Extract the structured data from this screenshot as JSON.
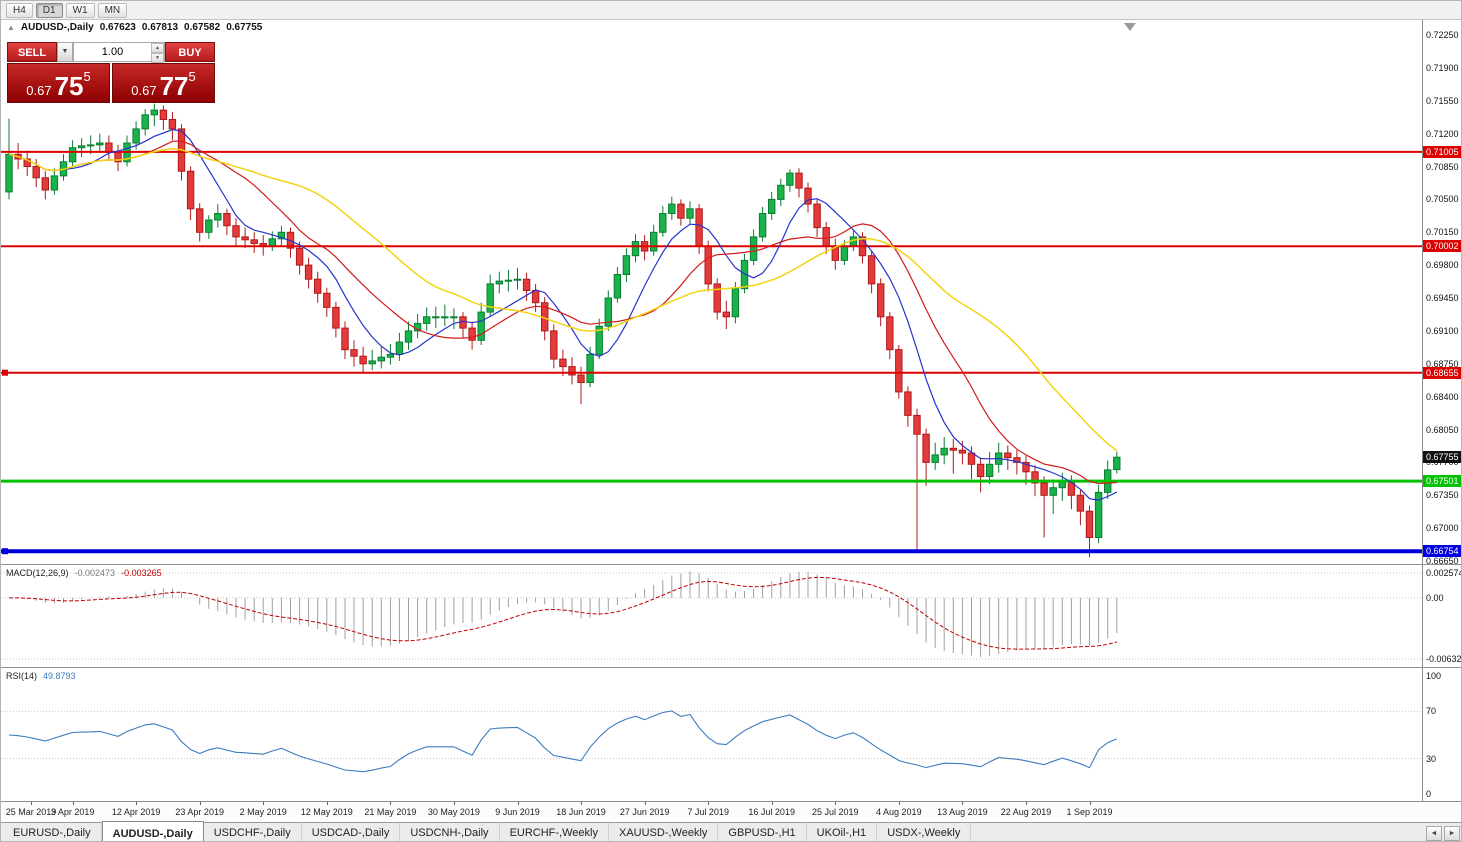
{
  "toolbar": {
    "timeframes": [
      "H4",
      "D1",
      "W1",
      "MN"
    ],
    "active_timeframe": "D1"
  },
  "chart_header": {
    "collapse_icon": "▲",
    "symbol": "AUDUSD-,Daily",
    "open": "0.67623",
    "high": "0.67813",
    "low": "0.67582",
    "close": "0.67755"
  },
  "trade_panel": {
    "sell_label": "SELL",
    "buy_label": "BUY",
    "volume": "1.00",
    "sell_price": {
      "prefix": "0.67",
      "big": "75",
      "pip": "5"
    },
    "buy_price": {
      "prefix": "0.67",
      "big": "77",
      "pip": "5"
    }
  },
  "icons": {
    "dropdown_icon": "▼",
    "spinner_up_icon": "▲",
    "spinner_down_icon": "▼",
    "tab_scroll_left_icon": "◄",
    "tab_scroll_right_icon": "►"
  },
  "price_axis_labels": [
    "0.72250",
    "0.71900",
    "0.71550",
    "0.71200",
    "0.70850",
    "0.70500",
    "0.70150",
    "0.69800",
    "0.69450",
    "0.69100",
    "0.68750",
    "0.68400",
    "0.68050",
    "0.67700",
    "0.67350",
    "0.67000",
    "0.66650"
  ],
  "hlines": [
    {
      "price": 0.71005,
      "label": "0.71005",
      "color": "#dd0000",
      "thickness": 2,
      "left_marker": false
    },
    {
      "price": 0.70002,
      "label": "0.70002",
      "color": "#dd0000",
      "thickness": 2,
      "left_marker": false
    },
    {
      "price": 0.68655,
      "label": "0.68655",
      "color": "#dd0000",
      "thickness": 2,
      "left_marker": true
    },
    {
      "price": 0.67501,
      "label": "0.67501",
      "color": "#00c200",
      "thickness": 3,
      "left_marker": false
    },
    {
      "price": 0.66754,
      "label": "0.66754",
      "color": "#0000e0",
      "thickness": 4,
      "left_marker": true
    }
  ],
  "current_price_tag": {
    "label": "0.67755",
    "price": 0.67755,
    "color": "#111111"
  },
  "chart_data": {
    "type": "candlestick",
    "title": "AUDUSD-,Daily",
    "ylim": [
      0.6665,
      0.7225
    ],
    "label_step": 7,
    "x_labels": [
      "25 Mar 2019",
      "3 Apr 2019",
      "12 Apr 2019",
      "23 Apr 2019",
      "2 May 2019",
      "12 May 2019",
      "21 May 2019",
      "30 May 2019",
      "9 Jun 2019",
      "18 Jun 2019",
      "27 Jun 2019",
      "7 Jul 2019",
      "16 Jul 2019",
      "25 Jul 2019",
      "4 Aug 2019",
      "13 Aug 2019",
      "22 Aug 2019",
      "1 Sep 2019"
    ],
    "up_color": "#19b24b",
    "up_border": "#0b7d33",
    "down_color": "#e33b3b",
    "down_border": "#b01919",
    "moving_averages": [
      {
        "name": "MA-fast",
        "period": 7,
        "color": "#2633cc",
        "width": 1.2
      },
      {
        "name": "MA-mid",
        "period": 14,
        "color": "#d21b1b",
        "width": 1.2
      },
      {
        "name": "MA-slow",
        "period": 28,
        "color": "#f2d410",
        "width": 1.5
      }
    ],
    "candles": [
      [
        0.7058,
        0.7136,
        0.705,
        0.7098
      ],
      [
        0.7098,
        0.711,
        0.7082,
        0.7093
      ],
      [
        0.7093,
        0.7102,
        0.7075,
        0.7085
      ],
      [
        0.7085,
        0.7093,
        0.7063,
        0.7073
      ],
      [
        0.7073,
        0.708,
        0.705,
        0.706
      ],
      [
        0.706,
        0.7083,
        0.7055,
        0.7075
      ],
      [
        0.7075,
        0.7098,
        0.707,
        0.709
      ],
      [
        0.709,
        0.7113,
        0.7085,
        0.7105
      ],
      [
        0.7105,
        0.7115,
        0.7095,
        0.7107
      ],
      [
        0.7107,
        0.7118,
        0.7098,
        0.7108
      ],
      [
        0.7108,
        0.712,
        0.71,
        0.711
      ],
      [
        0.711,
        0.7118,
        0.7092,
        0.71
      ],
      [
        0.71,
        0.7108,
        0.708,
        0.709
      ],
      [
        0.709,
        0.7118,
        0.7085,
        0.711
      ],
      [
        0.711,
        0.7133,
        0.7103,
        0.7125
      ],
      [
        0.7125,
        0.7146,
        0.7118,
        0.714
      ],
      [
        0.714,
        0.7152,
        0.7128,
        0.7145
      ],
      [
        0.7145,
        0.715,
        0.7124,
        0.7135
      ],
      [
        0.7135,
        0.7143,
        0.7113,
        0.7125
      ],
      [
        0.7125,
        0.713,
        0.707,
        0.708
      ],
      [
        0.708,
        0.7085,
        0.7028,
        0.704
      ],
      [
        0.704,
        0.7046,
        0.7005,
        0.7015
      ],
      [
        0.7015,
        0.7033,
        0.7008,
        0.7028
      ],
      [
        0.7028,
        0.7045,
        0.702,
        0.7035
      ],
      [
        0.7035,
        0.704,
        0.7012,
        0.7022
      ],
      [
        0.7022,
        0.703,
        0.7,
        0.701
      ],
      [
        0.701,
        0.702,
        0.6998,
        0.7007
      ],
      [
        0.7007,
        0.7015,
        0.6993,
        0.7003
      ],
      [
        0.7003,
        0.7012,
        0.699,
        0.7
      ],
      [
        0.7,
        0.7016,
        0.6995,
        0.7008
      ],
      [
        0.7008,
        0.7022,
        0.7,
        0.7015
      ],
      [
        0.7015,
        0.702,
        0.6988,
        0.6998
      ],
      [
        0.6998,
        0.7005,
        0.697,
        0.698
      ],
      [
        0.698,
        0.6988,
        0.6955,
        0.6965
      ],
      [
        0.6965,
        0.6973,
        0.694,
        0.695
      ],
      [
        0.695,
        0.6956,
        0.6925,
        0.6935
      ],
      [
        0.6935,
        0.6941,
        0.6903,
        0.6913
      ],
      [
        0.6913,
        0.692,
        0.688,
        0.689
      ],
      [
        0.689,
        0.69,
        0.6872,
        0.6883
      ],
      [
        0.6883,
        0.6893,
        0.68645,
        0.6875
      ],
      [
        0.6875,
        0.689,
        0.6868,
        0.6878
      ],
      [
        0.6878,
        0.6893,
        0.687,
        0.6882
      ],
      [
        0.6882,
        0.6896,
        0.6874,
        0.6885
      ],
      [
        0.6885,
        0.6908,
        0.6878,
        0.6898
      ],
      [
        0.6898,
        0.692,
        0.689,
        0.691
      ],
      [
        0.691,
        0.6928,
        0.6902,
        0.6918
      ],
      [
        0.6918,
        0.6935,
        0.691,
        0.6925
      ],
      [
        0.6925,
        0.6936,
        0.6913,
        0.6925
      ],
      [
        0.6925,
        0.6938,
        0.6915,
        0.6925
      ],
      [
        0.6925,
        0.6934,
        0.6912,
        0.6925
      ],
      [
        0.6925,
        0.693,
        0.6902,
        0.6913
      ],
      [
        0.6913,
        0.692,
        0.689,
        0.69
      ],
      [
        0.69,
        0.694,
        0.6895,
        0.693
      ],
      [
        0.693,
        0.697,
        0.6925,
        0.696
      ],
      [
        0.696,
        0.6973,
        0.695,
        0.6963
      ],
      [
        0.6963,
        0.6975,
        0.6952,
        0.6964
      ],
      [
        0.6964,
        0.6977,
        0.6954,
        0.6965
      ],
      [
        0.6965,
        0.6972,
        0.6942,
        0.6953
      ],
      [
        0.6953,
        0.696,
        0.693,
        0.694
      ],
      [
        0.694,
        0.6946,
        0.69,
        0.691
      ],
      [
        0.691,
        0.6917,
        0.687,
        0.688
      ],
      [
        0.688,
        0.689,
        0.6862,
        0.6872
      ],
      [
        0.6872,
        0.6882,
        0.6853,
        0.6863
      ],
      [
        0.6863,
        0.6872,
        0.6832,
        0.6855
      ],
      [
        0.6855,
        0.6893,
        0.685,
        0.6885
      ],
      [
        0.6885,
        0.6923,
        0.688,
        0.6915
      ],
      [
        0.6915,
        0.6953,
        0.691,
        0.6945
      ],
      [
        0.6945,
        0.6978,
        0.694,
        0.697
      ],
      [
        0.697,
        0.6998,
        0.6962,
        0.699
      ],
      [
        0.699,
        0.7013,
        0.6983,
        0.7005
      ],
      [
        0.7005,
        0.7012,
        0.6985,
        0.6995
      ],
      [
        0.6995,
        0.7023,
        0.699,
        0.7015
      ],
      [
        0.7015,
        0.7043,
        0.701,
        0.7035
      ],
      [
        0.7035,
        0.7053,
        0.7028,
        0.7045
      ],
      [
        0.7045,
        0.705,
        0.7022,
        0.703
      ],
      [
        0.703,
        0.7048,
        0.7023,
        0.704
      ],
      [
        0.704,
        0.7045,
        0.6992,
        0.7
      ],
      [
        0.7,
        0.7006,
        0.6952,
        0.696
      ],
      [
        0.696,
        0.6966,
        0.6922,
        0.693
      ],
      [
        0.693,
        0.6942,
        0.6912,
        0.6925
      ],
      [
        0.6925,
        0.6962,
        0.6918,
        0.6955
      ],
      [
        0.6955,
        0.6992,
        0.695,
        0.6985
      ],
      [
        0.6985,
        0.7018,
        0.698,
        0.701
      ],
      [
        0.701,
        0.7042,
        0.7005,
        0.7035
      ],
      [
        0.7035,
        0.7058,
        0.7028,
        0.705
      ],
      [
        0.705,
        0.7072,
        0.7043,
        0.7065
      ],
      [
        0.7065,
        0.7082,
        0.7058,
        0.7078
      ],
      [
        0.7078,
        0.7083,
        0.7052,
        0.7062
      ],
      [
        0.7062,
        0.7068,
        0.7036,
        0.7045
      ],
      [
        0.7045,
        0.705,
        0.701,
        0.702
      ],
      [
        0.702,
        0.7026,
        0.6992,
        0.7
      ],
      [
        0.7,
        0.7008,
        0.6975,
        0.6985
      ],
      [
        0.6985,
        0.7007,
        0.698,
        0.7
      ],
      [
        0.7,
        0.7018,
        0.6995,
        0.701
      ],
      [
        0.701,
        0.7015,
        0.6982,
        0.699
      ],
      [
        0.699,
        0.6995,
        0.695,
        0.696
      ],
      [
        0.696,
        0.6966,
        0.6915,
        0.6925
      ],
      [
        0.6925,
        0.693,
        0.688,
        0.689
      ],
      [
        0.689,
        0.6895,
        0.6838,
        0.6845
      ],
      [
        0.6845,
        0.6851,
        0.6808,
        0.682
      ],
      [
        0.682,
        0.6827,
        0.66757,
        0.68
      ],
      [
        0.68,
        0.6806,
        0.6745,
        0.677
      ],
      [
        0.677,
        0.6791,
        0.6762,
        0.6778
      ],
      [
        0.6778,
        0.6797,
        0.6768,
        0.6785
      ],
      [
        0.6785,
        0.6795,
        0.6758,
        0.6783
      ],
      [
        0.6783,
        0.6793,
        0.6768,
        0.678
      ],
      [
        0.678,
        0.6787,
        0.6752,
        0.6768
      ],
      [
        0.6768,
        0.6775,
        0.6738,
        0.6755
      ],
      [
        0.6755,
        0.6781,
        0.6747,
        0.6768
      ],
      [
        0.6768,
        0.6791,
        0.6759,
        0.678
      ],
      [
        0.678,
        0.6788,
        0.6762,
        0.6775
      ],
      [
        0.6775,
        0.6783,
        0.6757,
        0.677
      ],
      [
        0.677,
        0.6777,
        0.6746,
        0.676
      ],
      [
        0.676,
        0.6767,
        0.6734,
        0.6748
      ],
      [
        0.6748,
        0.6755,
        0.669,
        0.6735
      ],
      [
        0.6735,
        0.6752,
        0.6715,
        0.6743
      ],
      [
        0.6743,
        0.6759,
        0.6729,
        0.675
      ],
      [
        0.675,
        0.6756,
        0.672,
        0.6735
      ],
      [
        0.6735,
        0.6741,
        0.6703,
        0.6718
      ],
      [
        0.6718,
        0.6724,
        0.66689,
        0.669
      ],
      [
        0.669,
        0.6746,
        0.6684,
        0.6738
      ],
      [
        0.6738,
        0.6772,
        0.6731,
        0.6762
      ],
      [
        0.67623,
        0.67813,
        0.67582,
        0.67755
      ]
    ]
  },
  "macd_panel": {
    "title": "MACD(12,26,9)",
    "main_value": "-0.002473",
    "signal_value": "-0.003265",
    "fast": 12,
    "slow": 26,
    "signal": 9,
    "axis_labels": [
      "0.002574",
      "0.00",
      "-0.006326"
    ],
    "histogram_color": "#a0a0a0",
    "signal_color": "#c00000"
  },
  "rsi_panel": {
    "title": "RSI(14)",
    "value": "49.8793",
    "period": 14,
    "axis_labels": [
      "100",
      "70",
      "30",
      "0"
    ],
    "levels": [
      70,
      30
    ],
    "line_color": "#3d7dbf"
  },
  "tabs": {
    "items": [
      "EURUSD-,Daily",
      "AUDUSD-,Daily",
      "USDCHF-,Daily",
      "USDCAD-,Daily",
      "USDCNH-,Daily",
      "EURCHF-,Weekly",
      "XAUUSD-,Weekly",
      "GBPUSD-,H1",
      "UKOil-,H1",
      "USDX-,Weekly"
    ],
    "active_index": 1
  }
}
